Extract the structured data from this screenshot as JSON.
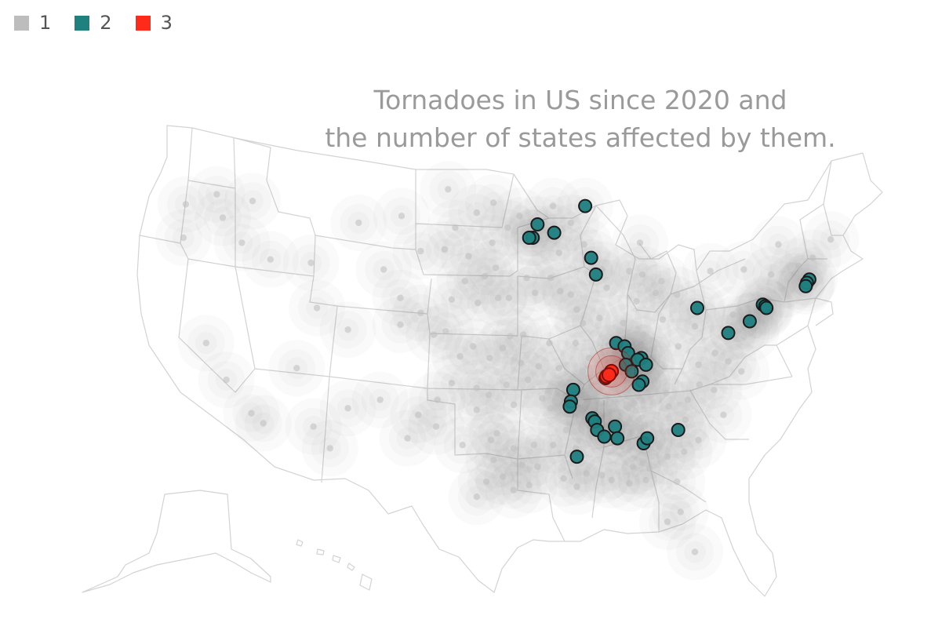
{
  "title_lines": [
    "Tornadoes in US since 2020 and",
    "the number of states affected by them."
  ],
  "legend": [
    {
      "label": "1",
      "color": "#bdbdbd"
    },
    {
      "label": "2",
      "color": "#1f8080"
    },
    {
      "label": "3",
      "color": "#ff2a1a"
    }
  ],
  "colors": {
    "state_border": "#d3d3d3",
    "density_fill": "#707070",
    "density_stroke": "#7a7a7a",
    "marker_stroke": "#1a1a1a"
  },
  "chart_data": {
    "type": "scatter",
    "projection": "albers-usa",
    "x_unit": "longitude (deg)",
    "y_unit": "latitude (deg)",
    "series": [
      {
        "name": "1",
        "points": [
          [
            -122.9,
            46.9
          ],
          [
            -120.3,
            47.5
          ],
          [
            -117.3,
            47.1
          ],
          [
            -119.8,
            46.1
          ],
          [
            -123.1,
            44.9
          ],
          [
            -118.2,
            44.6
          ],
          [
            -121.2,
            38.6
          ],
          [
            -119.5,
            36.4
          ],
          [
            -117.4,
            34.4
          ],
          [
            -116.4,
            33.8
          ],
          [
            -112.2,
            33.6
          ],
          [
            -110.8,
            32.3
          ],
          [
            -109.3,
            34.7
          ],
          [
            -106.6,
            35.2
          ],
          [
            -104.3,
            32.9
          ],
          [
            -103.4,
            34.3
          ],
          [
            -111.9,
            40.7
          ],
          [
            -112.4,
            43.4
          ],
          [
            -115.8,
            43.6
          ],
          [
            -108.4,
            45.8
          ],
          [
            -104.8,
            46.2
          ],
          [
            -106.3,
            43.0
          ],
          [
            -104.9,
            41.3
          ],
          [
            -104.9,
            39.7
          ],
          [
            -103.2,
            40.4
          ],
          [
            -102.1,
            39.1
          ],
          [
            -109.3,
            39.4
          ],
          [
            -113.6,
            37.1
          ],
          [
            -100.9,
            47.8
          ],
          [
            -97.1,
            47.0
          ],
          [
            -98.5,
            46.4
          ],
          [
            -100.3,
            45.5
          ],
          [
            -97.2,
            44.6
          ],
          [
            -99.2,
            43.8
          ],
          [
            -96.9,
            43.1
          ],
          [
            -101.2,
            44.2
          ],
          [
            -103.2,
            44.1
          ],
          [
            -100.6,
            41.2
          ],
          [
            -98.4,
            41.0
          ],
          [
            -96.7,
            41.3
          ],
          [
            -99.5,
            42.3
          ],
          [
            -97.8,
            42.6
          ],
          [
            -101.1,
            39.3
          ],
          [
            -98.8,
            38.4
          ],
          [
            -97.4,
            37.7
          ],
          [
            -95.7,
            39.0
          ],
          [
            -99.9,
            37.8
          ],
          [
            -96.3,
            38.3
          ],
          [
            -94.8,
            37.4
          ],
          [
            -101.8,
            35.2
          ],
          [
            -100.6,
            36.2
          ],
          [
            -98.5,
            35.9
          ],
          [
            -97.5,
            35.5
          ],
          [
            -96.0,
            36.1
          ],
          [
            -95.4,
            34.9
          ],
          [
            -98.5,
            34.6
          ],
          [
            -97.3,
            32.8
          ],
          [
            -96.8,
            33.2
          ],
          [
            -95.4,
            32.3
          ],
          [
            -98.5,
            29.4
          ],
          [
            -97.1,
            31.6
          ],
          [
            -95.4,
            29.8
          ],
          [
            -94.1,
            30.1
          ],
          [
            -96.3,
            30.6
          ],
          [
            -99.7,
            32.5
          ],
          [
            -101.9,
            33.6
          ],
          [
            -97.7,
            30.3
          ],
          [
            -94.7,
            31.3
          ],
          [
            -93.4,
            31.2
          ],
          [
            -92.1,
            32.5
          ],
          [
            -91.2,
            30.5
          ],
          [
            -90.1,
            30.0
          ],
          [
            -93.7,
            32.5
          ],
          [
            -92.3,
            34.7
          ],
          [
            -94.2,
            36.4
          ],
          [
            -91.0,
            35.8
          ],
          [
            -93.0,
            35.3
          ],
          [
            -90.5,
            35.3
          ],
          [
            -93.3,
            37.2
          ],
          [
            -92.4,
            38.6
          ],
          [
            -90.2,
            38.6
          ],
          [
            -94.6,
            39.1
          ],
          [
            -91.6,
            37.1
          ],
          [
            -89.6,
            36.9
          ],
          [
            -93.6,
            41.6
          ],
          [
            -91.5,
            41.7
          ],
          [
            -95.8,
            41.3
          ],
          [
            -94.3,
            42.5
          ],
          [
            -92.3,
            42.5
          ],
          [
            -90.6,
            41.5
          ],
          [
            -93.3,
            44.9
          ],
          [
            -94.9,
            46.2
          ],
          [
            -92.1,
            46.8
          ],
          [
            -95.9,
            45.5
          ],
          [
            -91.6,
            44.0
          ],
          [
            -89.5,
            44.5
          ],
          [
            -88.0,
            43.0
          ],
          [
            -90.6,
            45.8
          ],
          [
            -87.6,
            41.9
          ],
          [
            -89.6,
            39.8
          ],
          [
            -88.2,
            40.1
          ],
          [
            -89.1,
            37.7
          ],
          [
            -90.1,
            40.6
          ],
          [
            -86.2,
            39.8
          ],
          [
            -85.1,
            41.1
          ],
          [
            -87.4,
            38.0
          ],
          [
            -85.7,
            38.3
          ],
          [
            -84.5,
            38.0
          ],
          [
            -87.1,
            37.0
          ],
          [
            -83.4,
            37.3
          ],
          [
            -86.8,
            36.2
          ],
          [
            -85.3,
            35.0
          ],
          [
            -83.9,
            36.0
          ],
          [
            -89.8,
            35.1
          ],
          [
            -88.8,
            35.6
          ],
          [
            -86.8,
            33.5
          ],
          [
            -86.3,
            32.4
          ],
          [
            -88.0,
            30.7
          ],
          [
            -85.4,
            31.2
          ],
          [
            -85.8,
            34.7
          ],
          [
            -87.6,
            34.8
          ],
          [
            -90.2,
            32.3
          ],
          [
            -89.3,
            30.8
          ],
          [
            -88.7,
            34.3
          ],
          [
            -91.0,
            33.4
          ],
          [
            -84.4,
            33.7
          ],
          [
            -83.6,
            32.8
          ],
          [
            -81.1,
            32.1
          ],
          [
            -84.0,
            31.1
          ],
          [
            -82.4,
            34.8
          ],
          [
            -81.0,
            34.0
          ],
          [
            -79.9,
            32.8
          ],
          [
            -80.8,
            35.2
          ],
          [
            -78.6,
            35.8
          ],
          [
            -77.8,
            34.3
          ],
          [
            -79.8,
            36.1
          ],
          [
            -82.6,
            35.6
          ],
          [
            -77.4,
            37.5
          ],
          [
            -79.9,
            37.3
          ],
          [
            -76.3,
            36.9
          ],
          [
            -78.5,
            38.0
          ],
          [
            -81.6,
            38.4
          ],
          [
            -80.2,
            39.6
          ],
          [
            -82.9,
            40.0
          ],
          [
            -81.7,
            41.5
          ],
          [
            -84.5,
            39.1
          ],
          [
            -83.5,
            41.6
          ],
          [
            -80.0,
            40.4
          ],
          [
            -77.0,
            40.3
          ],
          [
            -75.2,
            40.0
          ],
          [
            -76.6,
            39.3
          ],
          [
            -75.5,
            39.2
          ],
          [
            -74.4,
            40.5
          ],
          [
            -73.8,
            42.7
          ],
          [
            -76.1,
            43.0
          ],
          [
            -78.9,
            42.9
          ],
          [
            -72.7,
            41.8
          ],
          [
            -71.8,
            42.3
          ],
          [
            -73.2,
            44.5
          ],
          [
            -71.5,
            43.2
          ],
          [
            -70.3,
            43.7
          ],
          [
            -68.8,
            44.8
          ],
          [
            -85.7,
            42.9
          ],
          [
            -84.6,
            42.7
          ],
          [
            -83.0,
            42.3
          ],
          [
            -84.8,
            44.6
          ],
          [
            -82.5,
            31.8
          ],
          [
            -81.4,
            28.5
          ],
          [
            -82.5,
            27.9
          ],
          [
            -80.2,
            26.1
          ],
          [
            -81.7,
            30.3
          ],
          [
            -84.3,
            30.4
          ],
          [
            -85.7,
            30.2
          ],
          [
            -87.2,
            30.4
          ]
        ]
      },
      {
        "name": "2",
        "points": [
          [
            -89.4,
            46.8
          ],
          [
            -93.4,
            45.7
          ],
          [
            -92.0,
            45.2
          ],
          [
            -93.8,
            44.9
          ],
          [
            -94.1,
            44.9
          ],
          [
            -88.9,
            43.7
          ],
          [
            -88.5,
            42.7
          ],
          [
            -86.8,
            38.6
          ],
          [
            -86.1,
            38.4
          ],
          [
            -85.8,
            38.0
          ],
          [
            -84.7,
            37.7
          ],
          [
            -85.0,
            37.6
          ],
          [
            -86.0,
            37.3
          ],
          [
            -85.5,
            36.9
          ],
          [
            -84.3,
            37.3
          ],
          [
            -84.6,
            36.3
          ],
          [
            -84.9,
            36.1
          ],
          [
            -87.7,
            36.5
          ],
          [
            -90.4,
            35.8
          ],
          [
            -90.6,
            35.1
          ],
          [
            -90.7,
            34.8
          ],
          [
            -88.8,
            34.1
          ],
          [
            -88.6,
            33.9
          ],
          [
            -88.4,
            33.4
          ],
          [
            -86.9,
            33.6
          ],
          [
            -86.7,
            32.9
          ],
          [
            -87.8,
            33.0
          ],
          [
            -84.5,
            32.6
          ],
          [
            -84.2,
            32.9
          ],
          [
            -81.6,
            33.4
          ],
          [
            -90.1,
            31.8
          ],
          [
            -80.0,
            40.7
          ],
          [
            -77.4,
            39.2
          ],
          [
            -75.6,
            39.9
          ],
          [
            -74.5,
            40.9
          ],
          [
            -74.3,
            40.8
          ],
          [
            -74.2,
            40.7
          ],
          [
            -70.6,
            42.4
          ],
          [
            -70.8,
            42.2
          ],
          [
            -70.9,
            42.0
          ]
        ]
      },
      {
        "name": "3",
        "points": [
          [
            -87.2,
            36.9
          ],
          [
            -87.6,
            36.6
          ],
          [
            -87.4,
            36.7
          ]
        ]
      }
    ]
  }
}
